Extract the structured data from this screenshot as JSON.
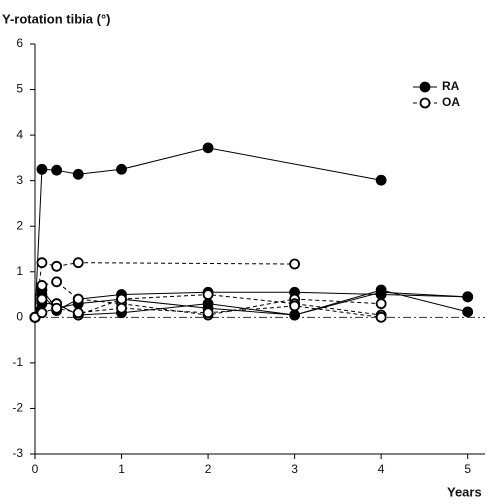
{
  "chart_data": {
    "type": "line",
    "y_label": "Y-rotation tibia (°)",
    "x_label": "Years",
    "xlim": [
      0,
      5.2
    ],
    "xticks": [
      0,
      1,
      2,
      3,
      4,
      5
    ],
    "ylim": [
      -3,
      6
    ],
    "yticks": [
      -3,
      -2,
      -1,
      0,
      1,
      2,
      3,
      4,
      5,
      6
    ],
    "reference_line": 0,
    "legend": "upper right",
    "series": [
      {
        "name": "RA",
        "color": "#000000",
        "marker": "filled",
        "dashed": false,
        "x": [
          0,
          0.08,
          0.25,
          0.5,
          1,
          2,
          4
        ],
        "values": [
          0,
          3.25,
          3.23,
          3.14,
          3.25,
          3.72,
          3.01
        ]
      },
      {
        "name": "RA",
        "color": "#000000",
        "marker": "filled",
        "dashed": false,
        "x": [
          0,
          0.08,
          0.25,
          0.5,
          1,
          2,
          3,
          4,
          5
        ],
        "values": [
          0,
          0.5,
          0.15,
          0.4,
          0.5,
          0.55,
          0.55,
          0.5,
          0.45
        ]
      },
      {
        "name": "RA",
        "color": "#000000",
        "marker": "filled",
        "dashed": false,
        "x": [
          0,
          0.08,
          0.25,
          0.5,
          1,
          2,
          3,
          4,
          5
        ],
        "values": [
          0,
          0.3,
          0.3,
          0.05,
          0.1,
          0.3,
          0.05,
          0.6,
          0.12
        ]
      },
      {
        "name": "RA",
        "color": "#000000",
        "marker": "filled",
        "dashed": false,
        "x": [
          0,
          0.08,
          0.25,
          0.5,
          1,
          2,
          3,
          4,
          5
        ],
        "values": [
          0,
          0.6,
          0.2,
          0.3,
          0.4,
          0.2,
          0.05,
          0.55,
          0.45
        ]
      },
      {
        "name": "OA",
        "color": "#000000",
        "marker": "open",
        "dashed": true,
        "x": [
          0,
          0.08,
          0.25,
          0.5,
          3
        ],
        "values": [
          0,
          1.2,
          1.12,
          1.2,
          1.17
        ]
      },
      {
        "name": "OA",
        "color": "#000000",
        "marker": "open",
        "dashed": true,
        "x": [
          0,
          0.08,
          0.25,
          0.5,
          1,
          2,
          3,
          4
        ],
        "values": [
          0,
          0.7,
          0.78,
          0.4,
          0.3,
          0.05,
          0.4,
          0.3
        ]
      },
      {
        "name": "OA",
        "color": "#000000",
        "marker": "open",
        "dashed": true,
        "x": [
          0,
          0.08,
          0.25,
          0.5,
          1,
          2,
          3,
          4
        ],
        "values": [
          0,
          0.4,
          0.3,
          0.05,
          0.4,
          0.5,
          0.3,
          0.05
        ]
      },
      {
        "name": "OA",
        "color": "#000000",
        "marker": "open",
        "dashed": true,
        "x": [
          0,
          0.08,
          0.25,
          0.5,
          1,
          2,
          3,
          4
        ],
        "values": [
          0,
          0.1,
          0.2,
          0.1,
          0.2,
          0.1,
          0.25,
          0.0
        ]
      }
    ]
  }
}
